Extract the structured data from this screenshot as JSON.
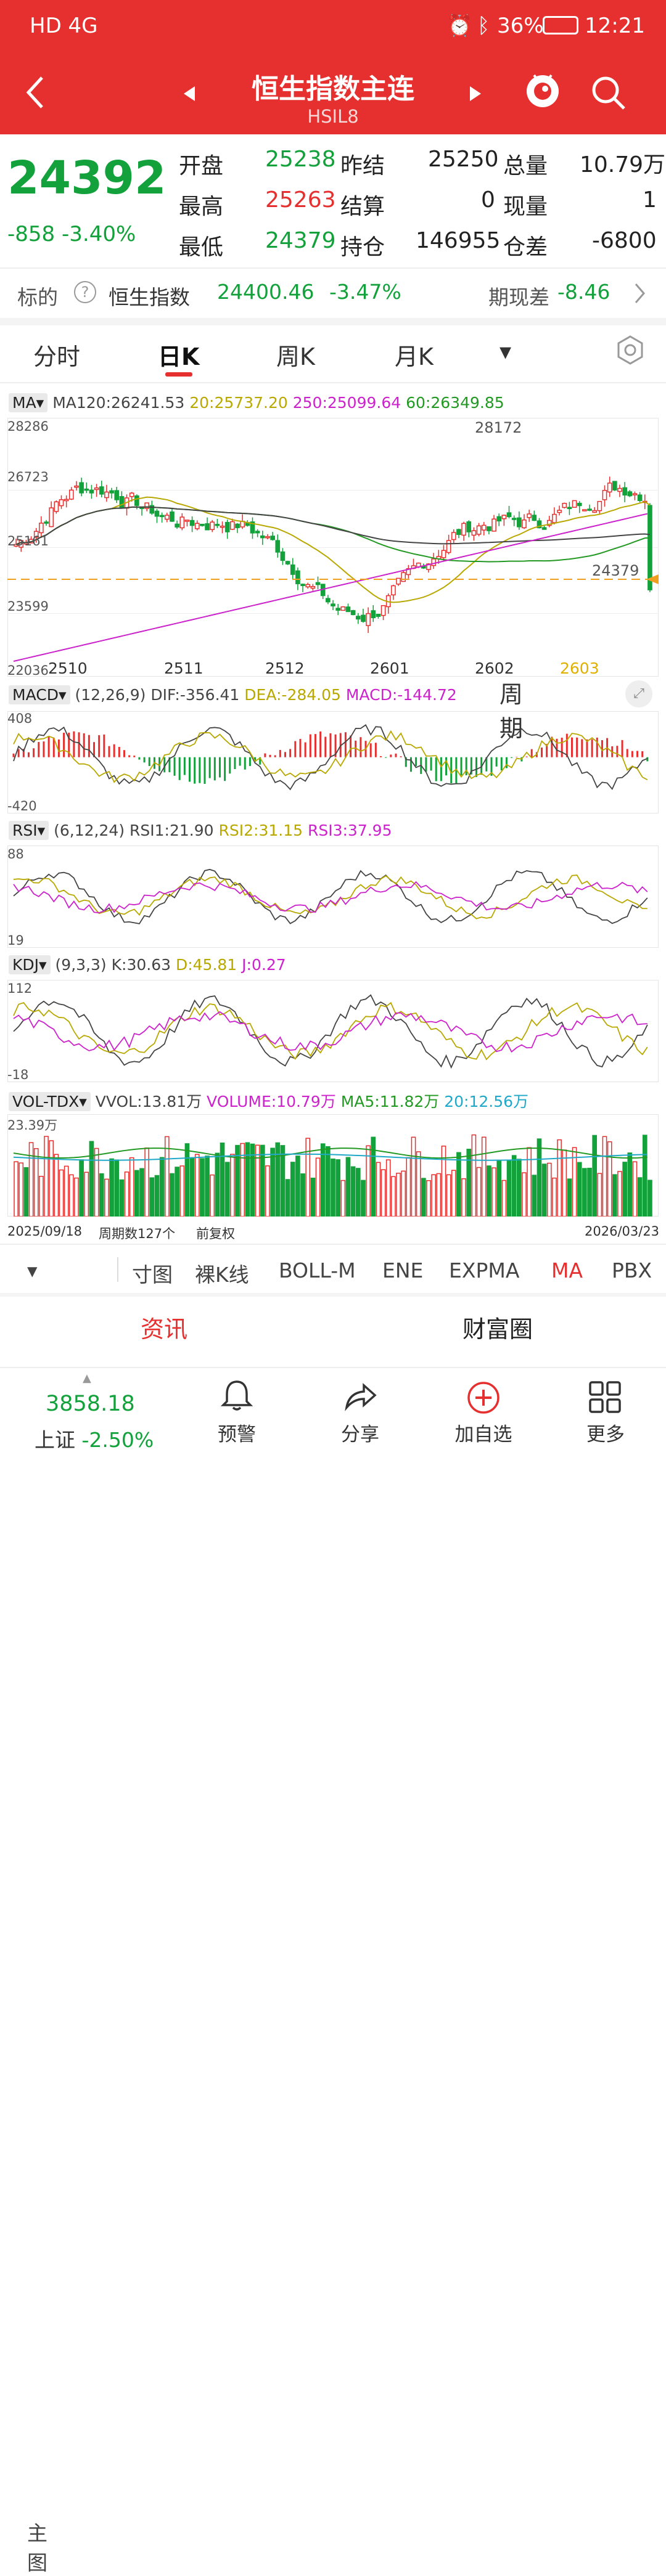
{
  "status_bar": {
    "left": "HD 4G",
    "battery": "36%",
    "time": "12:21"
  },
  "header": {
    "title": "恒生指数主连",
    "code": "HSIL8"
  },
  "quote": {
    "price": "24392",
    "change": "-858",
    "change_pct": "-3.40%",
    "open_label": "开盘",
    "open": "25238",
    "prev_settle_label": "昨结",
    "prev_settle": "25250",
    "volume_label": "总量",
    "volume": "10.79万",
    "high_label": "最高",
    "high": "25263",
    "settle_label": "结算",
    "settle": "0",
    "cur_vol_label": "现量",
    "cur_vol": "1",
    "low_label": "最低",
    "low": "24379",
    "oi_label": "持仓",
    "oi": "146955",
    "oi_diff_label": "仓差",
    "oi_diff": "-6800"
  },
  "underlying": {
    "label": "标的",
    "name": "恒生指数",
    "price": "24400.46",
    "pct": "-3.47%",
    "basis_label": "期现差",
    "basis": "-8.46"
  },
  "tabs": [
    "分时",
    "日K",
    "周K",
    "月K",
    "周期"
  ],
  "ma": {
    "dropdown": "MA",
    "l1": "MA120:26241.53",
    "l2": "20:25737.20",
    "l3": "250:25099.64",
    "l4": "60:26349.85",
    "y_top": "28286",
    "y2": "26723",
    "y3": "25161",
    "y4": "23599",
    "y_bot": "22036",
    "high_mark": "28172",
    "low_mark": "24379",
    "dates": [
      "2510",
      "2511",
      "2512",
      "2601",
      "2602",
      "2603"
    ]
  },
  "macd": {
    "dropdown": "MACD",
    "params": "(12,26,9)",
    "dif": "DIF:-356.41",
    "dea": "DEA:-284.05",
    "macd": "MACD:-144.72",
    "y_top": "408",
    "y_bot": "-420"
  },
  "rsi": {
    "dropdown": "RSI",
    "params": "(6,12,24)",
    "r1": "RSI1:21.90",
    "r2": "RSI2:31.15",
    "r3": "RSI3:37.95",
    "y_top": "88",
    "y_bot": "19"
  },
  "kdj": {
    "dropdown": "KDJ",
    "params": "(9,3,3)",
    "k": "K:30.63",
    "d": "D:45.81",
    "j": "J:0.27",
    "y_top": "112",
    "y_bot": "-18"
  },
  "vol": {
    "dropdown": "VOL-TDX",
    "vvol": "VVOL:13.81万",
    "volume": "VOLUME:10.79万",
    "ma5": "MA5:11.82万",
    "ma20": "20:12.56万",
    "y_top": "23.39万"
  },
  "footer_info": {
    "start": "2025/09/18",
    "count": "周期数127个",
    "adj": "前复权",
    "end": "2026/03/23"
  },
  "tools": [
    "主图",
    "寸图",
    "裸K线",
    "BOLL-M",
    "ENE",
    "EXPMA",
    "MA",
    "PBX"
  ],
  "section_tabs": [
    "资讯",
    "财富圈"
  ],
  "bottom_bar": {
    "index_value": "3858.18",
    "index_label": "上证",
    "index_pct": "-2.50%",
    "items": [
      "预警",
      "分享",
      "加自选",
      "更多"
    ]
  },
  "colors": {
    "header": "#e6302f",
    "up": "#e6302f",
    "down": "#13a13b"
  }
}
